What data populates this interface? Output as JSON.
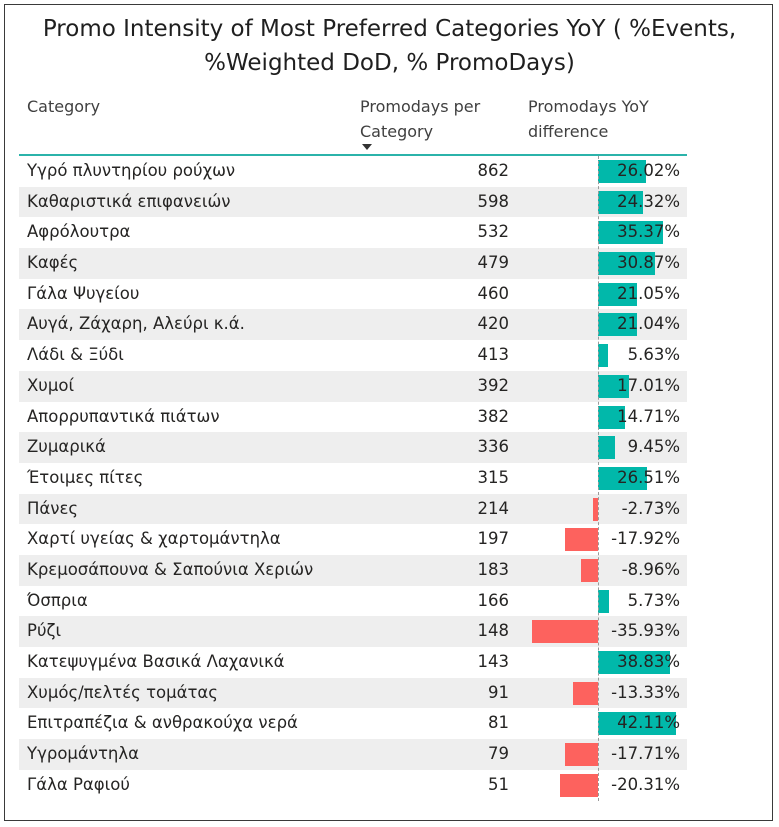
{
  "chart_data": {
    "type": "table",
    "title": "Promo Intensity of Most Preferred Categories YoY ( %Events, %Weighted DoD, % PromoDays)",
    "columns": [
      "Category",
      "Promodays per Category",
      "Promodays YoY difference"
    ],
    "sort": {
      "column": "Promodays per Category",
      "order": "descending"
    },
    "rows": [
      {
        "category": "Υγρό πλυντηρίου ρούχων",
        "promodays": 862,
        "yoy": 26.02,
        "yoy_label": "26.02%"
      },
      {
        "category": "Καθαριστικά επιφανειών",
        "promodays": 598,
        "yoy": 24.32,
        "yoy_label": "24.32%"
      },
      {
        "category": "Αφρόλουτρα",
        "promodays": 532,
        "yoy": 35.37,
        "yoy_label": "35.37%"
      },
      {
        "category": "Καφές",
        "promodays": 479,
        "yoy": 30.87,
        "yoy_label": "30.87%"
      },
      {
        "category": "Γάλα Ψυγείου",
        "promodays": 460,
        "yoy": 21.05,
        "yoy_label": "21.05%"
      },
      {
        "category": "Αυγά, Ζάχαρη, Αλεύρι κ.ά.",
        "promodays": 420,
        "yoy": 21.04,
        "yoy_label": "21.04%"
      },
      {
        "category": "Λάδι & Ξύδι",
        "promodays": 413,
        "yoy": 5.63,
        "yoy_label": "5.63%"
      },
      {
        "category": "Χυμοί",
        "promodays": 392,
        "yoy": 17.01,
        "yoy_label": "17.01%"
      },
      {
        "category": "Απορρυπαντικά πιάτων",
        "promodays": 382,
        "yoy": 14.71,
        "yoy_label": "14.71%"
      },
      {
        "category": "Ζυμαρικά",
        "promodays": 336,
        "yoy": 9.45,
        "yoy_label": "9.45%"
      },
      {
        "category": "Έτοιμες πίτες",
        "promodays": 315,
        "yoy": 26.51,
        "yoy_label": "26.51%"
      },
      {
        "category": "Πάνες",
        "promodays": 214,
        "yoy": -2.73,
        "yoy_label": "-2.73%"
      },
      {
        "category": "Χαρτί υγείας & χαρτομάντηλα",
        "promodays": 197,
        "yoy": -17.92,
        "yoy_label": "-17.92%"
      },
      {
        "category": "Κρεμοσάπουνα & Σαπούνια Χεριών",
        "promodays": 183,
        "yoy": -8.96,
        "yoy_label": "-8.96%"
      },
      {
        "category": "Όσπρια",
        "promodays": 166,
        "yoy": 5.73,
        "yoy_label": "5.73%"
      },
      {
        "category": "Ρύζι",
        "promodays": 148,
        "yoy": -35.93,
        "yoy_label": "-35.93%"
      },
      {
        "category": "Κατεψυγμένα Βασικά Λαχανικά",
        "promodays": 143,
        "yoy": 38.83,
        "yoy_label": "38.83%"
      },
      {
        "category": "Χυμός/πελτές τομάτας",
        "promodays": 91,
        "yoy": -13.33,
        "yoy_label": "-13.33%"
      },
      {
        "category": "Επιτραπέζια & ανθρακούχα νερά",
        "promodays": 81,
        "yoy": 42.11,
        "yoy_label": "42.11%"
      },
      {
        "category": "Υγρομάντηλα",
        "promodays": 79,
        "yoy": -17.71,
        "yoy_label": "-17.71%"
      },
      {
        "category": "Γάλα Ραφιού",
        "promodays": 51,
        "yoy": -20.31,
        "yoy_label": "-20.31%"
      }
    ],
    "colors": {
      "positive": "#01b8aa",
      "negative": "#fd625e",
      "header_rule": "#2bb3aa",
      "alt_row": "#eeeeee"
    }
  }
}
